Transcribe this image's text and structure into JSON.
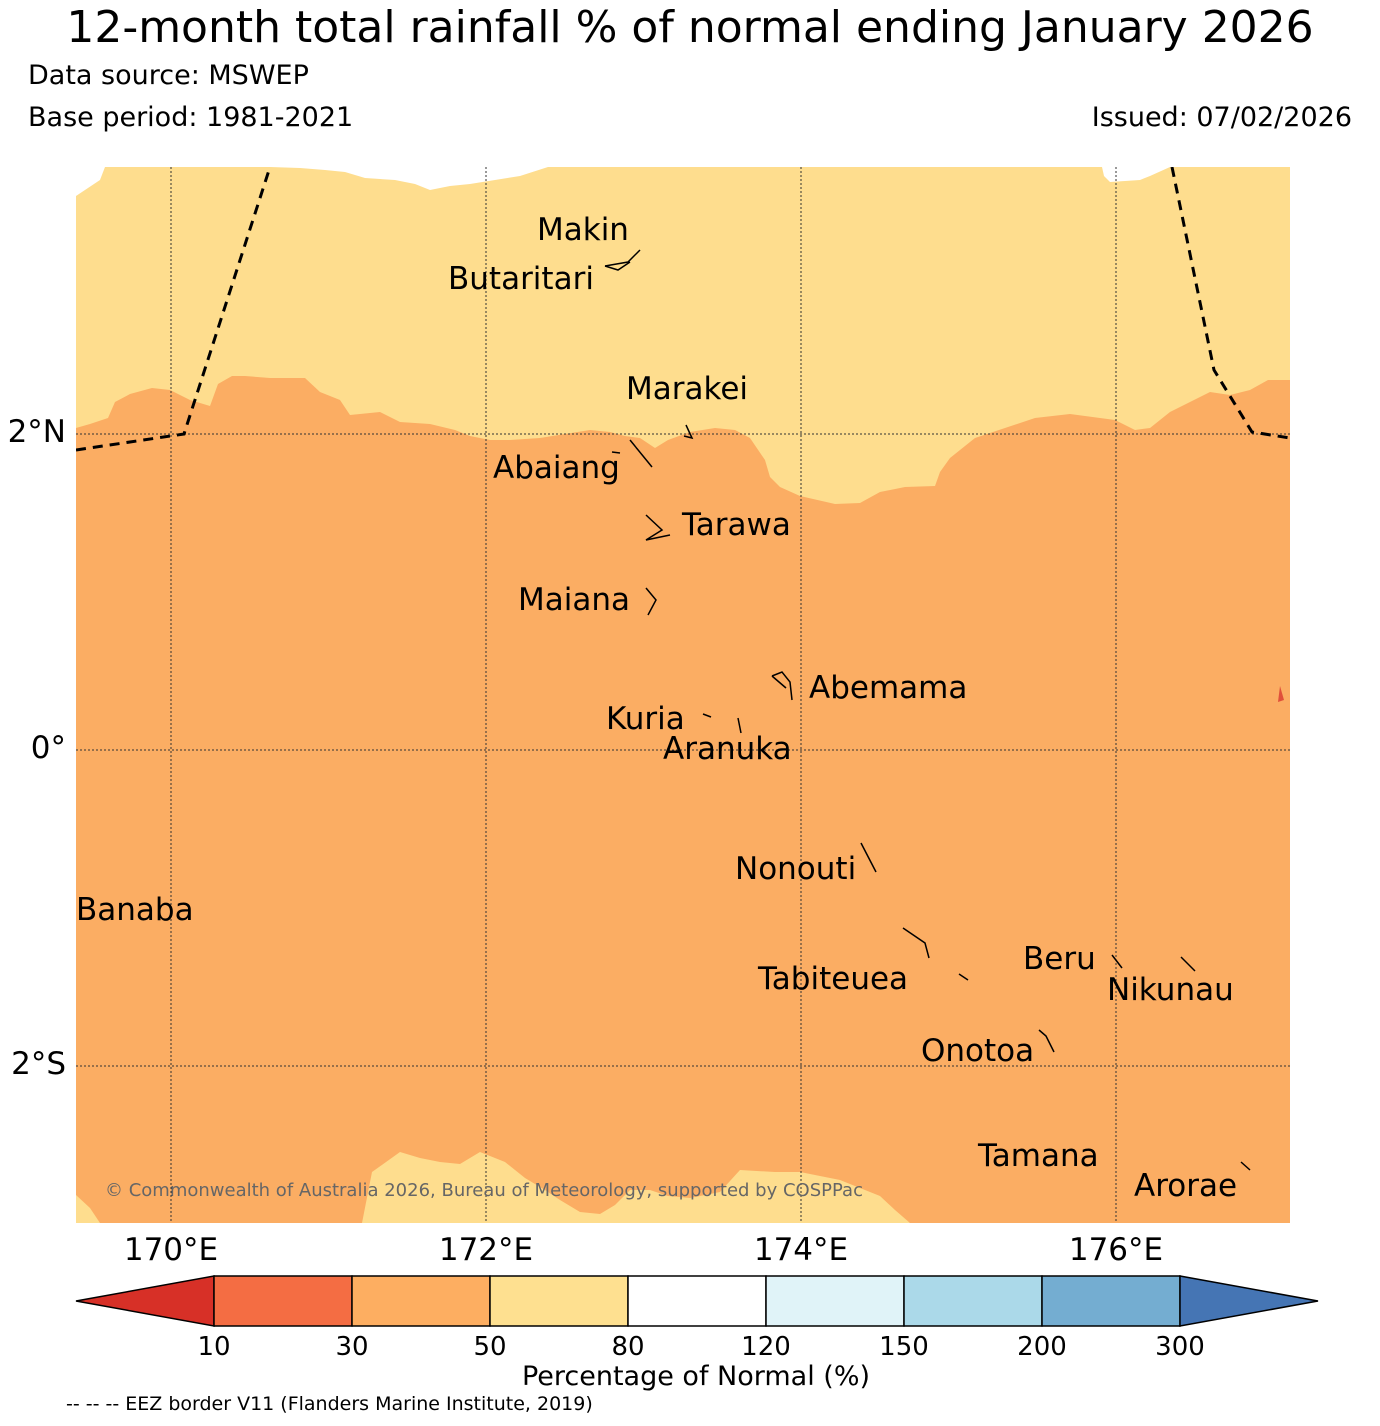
{
  "header": {
    "title": "12-month total rainfall % of normal ending January 2026",
    "source": "Data source: MSWEP",
    "base_period": "Base period: 1981-2021",
    "issued": "Issued: 07/02/2026"
  },
  "map": {
    "lat_labels": [
      "2°N",
      "0°",
      "2°S"
    ],
    "lon_labels": [
      "170°E",
      "172°E",
      "174°E",
      "176°E"
    ],
    "islands": [
      "Makin",
      "Butaritari",
      "Marakei",
      "Abaiang",
      "Tarawa",
      "Maiana",
      "Abemama",
      "Kuria",
      "Aranuka",
      "Nonouti",
      "Banaba",
      "Tabiteuea",
      "Beru",
      "Nikunau",
      "Onotoa",
      "Tamana",
      "Arorae"
    ],
    "copyright": "© Commonwealth of Australia 2026, Bureau of Meteorology, supported by COSPPac",
    "colors": {
      "category_30_50": "#fbad63",
      "category_50_80": "#fedd8e",
      "border": "#000000"
    }
  },
  "colorbar": {
    "ticks": [
      "10",
      "30",
      "50",
      "80",
      "120",
      "150",
      "200",
      "300"
    ],
    "colors": [
      "#d73027",
      "#f46d43",
      "#fdae61",
      "#fee090",
      "#ffffff",
      "#e0f3f8",
      "#abd9e9",
      "#74add1",
      "#4575b4"
    ],
    "label": "Percentage of Normal (%)"
  },
  "footer": {
    "eez_note": "-- -- -- EEZ border V11 (Flanders Marine Institute, 2019)"
  }
}
